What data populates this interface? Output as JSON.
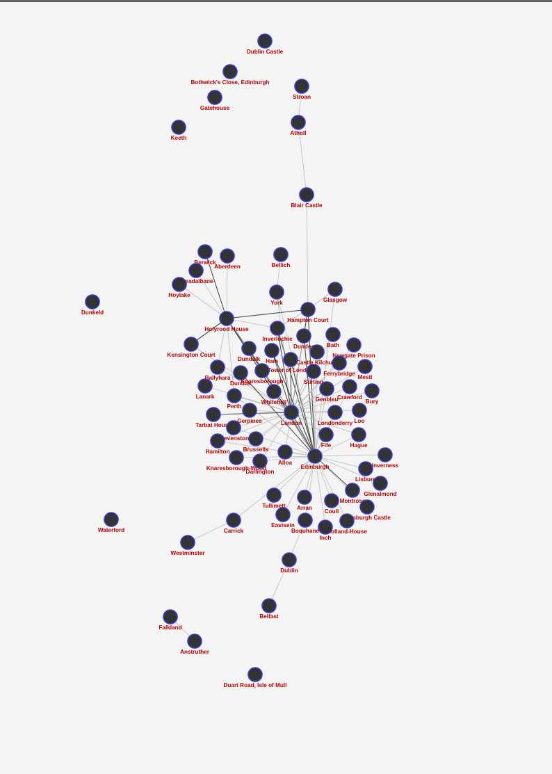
{
  "colors": {
    "background": "#f4f4f4",
    "top_bar": "#5f5f5f",
    "node_fill": "#333333",
    "node_stroke": "#3b3bd6",
    "label": "#b00000",
    "edge_light": "#bbbbbb",
    "edge_dark": "#4a4a4a"
  },
  "graph": {
    "nodes": [
      {
        "id": "Dublin Castle",
        "label": "Dublin Castle"
      },
      {
        "id": "Bothwick's Close, Edinburgh",
        "label": "Bothwick's Close, Edinburgh"
      },
      {
        "id": "Gatehouse",
        "label": "Gatehouse"
      },
      {
        "id": "Keeth",
        "label": "Keeth"
      },
      {
        "id": "Stroan",
        "label": "Stroan"
      },
      {
        "id": "Atholl",
        "label": "Atholl"
      },
      {
        "id": "Blair Castle",
        "label": "Blair Castle"
      },
      {
        "id": "Berwick",
        "label": "Berwick"
      },
      {
        "id": "Aberdeen",
        "label": "Aberdeen"
      },
      {
        "id": "Breadalbane",
        "label": "Breadalbane"
      },
      {
        "id": "Hoylake",
        "label": "Hoylake"
      },
      {
        "id": "Dunkeld",
        "label": "Dunkeld"
      },
      {
        "id": "Bellich",
        "label": "Bellich"
      },
      {
        "id": "York",
        "label": "York"
      },
      {
        "id": "Glasgow",
        "label": "Glasgow"
      },
      {
        "id": "Holyrood House",
        "label": "Holyrood House"
      },
      {
        "id": "Hampton Court",
        "label": "Hampton Court"
      },
      {
        "id": "Inverlochie",
        "label": "Inverlochie"
      },
      {
        "id": "Kensington Court",
        "label": "Kensington Court"
      },
      {
        "id": "Dundee",
        "label": "Dundee"
      },
      {
        "id": "Bath",
        "label": "Bath"
      },
      {
        "id": "Newgate Prison",
        "label": "Newgate Prison"
      },
      {
        "id": "Dundalk",
        "label": "Dundalk"
      },
      {
        "id": "Ham",
        "label": "Ham"
      },
      {
        "id": "Castle Kilchurn",
        "label": "Castle Kilchurn"
      },
      {
        "id": "Tower of London",
        "label": "Tower of London"
      },
      {
        "id": "Ferrybridge",
        "label": "Ferrybridge"
      },
      {
        "id": "Mesti",
        "label": "Mesti"
      },
      {
        "id": "Ballyhara",
        "label": "Ballyhara"
      },
      {
        "id": "Dundas",
        "label": "Dundas"
      },
      {
        "id": "Knaresborough",
        "label": "Knaresborough"
      },
      {
        "id": "Stirling",
        "label": "Stirling"
      },
      {
        "id": "Lanark",
        "label": "Lanark"
      },
      {
        "id": "Genbleu",
        "label": "Genbleu"
      },
      {
        "id": "Crawford",
        "label": "Crawford"
      },
      {
        "id": "Bury",
        "label": "Bury"
      },
      {
        "id": "Whitehall",
        "label": "Whitehall"
      },
      {
        "id": "Perth",
        "label": "Perth"
      },
      {
        "id": "Tarbat House",
        "label": "Tarbat House"
      },
      {
        "id": "Gerpines",
        "label": "Gerpines"
      },
      {
        "id": "London",
        "label": "London"
      },
      {
        "id": "Londonderry",
        "label": "Londonderry"
      },
      {
        "id": "Loo",
        "label": "Loo"
      },
      {
        "id": "Stevenston",
        "label": "Stevenston"
      },
      {
        "id": "Hamilton",
        "label": "Hamilton"
      },
      {
        "id": "Brussells",
        "label": "Brussells"
      },
      {
        "id": "Fife",
        "label": "Fife"
      },
      {
        "id": "Hague",
        "label": "Hague"
      },
      {
        "id": "Knaresborough-Wood",
        "label": "Knaresborough-Wood"
      },
      {
        "id": "Darlington",
        "label": "Darlington"
      },
      {
        "id": "Alloa",
        "label": "Alloa"
      },
      {
        "id": "Edinburgh",
        "label": "Edinburgh"
      },
      {
        "id": "Inverness",
        "label": "Inverness"
      },
      {
        "id": "Lisburn",
        "label": "Lisburn"
      },
      {
        "id": "Glenalmond",
        "label": "Glenalmond"
      },
      {
        "id": "Tullimett",
        "label": "Tullimett"
      },
      {
        "id": "Arran",
        "label": "Arran"
      },
      {
        "id": "Montrose",
        "label": "Montrose"
      },
      {
        "id": "Edinburgh Castle",
        "label": "Edinburgh Castle"
      },
      {
        "id": "Coull",
        "label": "Coull"
      },
      {
        "id": "Eastsein",
        "label": "Eastsein"
      },
      {
        "id": "Boquhane",
        "label": "Boquhane"
      },
      {
        "id": "Holland-House",
        "label": "Holland-House"
      },
      {
        "id": "Inch",
        "label": "Inch"
      },
      {
        "id": "Waterford",
        "label": "Waterford"
      },
      {
        "id": "Carrick",
        "label": "Carrick"
      },
      {
        "id": "Westminster",
        "label": "Westminster"
      },
      {
        "id": "Dublin",
        "label": "Dublin"
      },
      {
        "id": "Belfast",
        "label": "Belfast"
      },
      {
        "id": "Falkland",
        "label": "Falkland"
      },
      {
        "id": "Anstruther",
        "label": "Anstruther"
      },
      {
        "id": "Duart Road, Isle of Mull",
        "label": "Duart Road, Isle of Mull"
      }
    ],
    "edges": [
      {
        "source": "Stroan",
        "target": "Atholl",
        "weight": "light"
      },
      {
        "source": "Atholl",
        "target": "Blair Castle",
        "weight": "light"
      },
      {
        "source": "Blair Castle",
        "target": "Hampton Court",
        "weight": "light"
      },
      {
        "source": "Berwick",
        "target": "Holyrood House",
        "weight": "dark"
      },
      {
        "source": "Aberdeen",
        "target": "Holyrood House",
        "weight": "light"
      },
      {
        "source": "Breadalbane",
        "target": "Holyrood House",
        "weight": "light"
      },
      {
        "source": "Hoylake",
        "target": "Holyrood House",
        "weight": "light"
      },
      {
        "source": "Bellich",
        "target": "York",
        "weight": "light"
      },
      {
        "source": "York",
        "target": "London",
        "weight": "light"
      },
      {
        "source": "York",
        "target": "Edinburgh",
        "weight": "light"
      },
      {
        "source": "Glasgow",
        "target": "Hampton Court",
        "weight": "light"
      },
      {
        "source": "Glasgow",
        "target": "Edinburgh",
        "weight": "light"
      },
      {
        "source": "Holyrood House",
        "target": "Hampton Court",
        "weight": "dark"
      },
      {
        "source": "Holyrood House",
        "target": "Inverlochie",
        "weight": "light"
      },
      {
        "source": "Holyrood House",
        "target": "Kensington Court",
        "weight": "dark"
      },
      {
        "source": "Holyrood House",
        "target": "Edinburgh",
        "weight": "dark"
      },
      {
        "source": "Holyrood House",
        "target": "London",
        "weight": "dark"
      },
      {
        "source": "Holyrood House",
        "target": "Ballyhara",
        "weight": "light"
      },
      {
        "source": "Holyrood House",
        "target": "Dundalk",
        "weight": "light"
      },
      {
        "source": "Holyrood House",
        "target": "Perth",
        "weight": "light"
      },
      {
        "source": "Hampton Court",
        "target": "London",
        "weight": "dark"
      },
      {
        "source": "Hampton Court",
        "target": "Edinburgh",
        "weight": "dark"
      },
      {
        "source": "Hampton Court",
        "target": "Inverlochie",
        "weight": "light"
      },
      {
        "source": "Inverlochie",
        "target": "Edinburgh",
        "weight": "dark"
      },
      {
        "source": "Inverlochie",
        "target": "London",
        "weight": "dark"
      },
      {
        "source": "Kensington Court",
        "target": "London",
        "weight": "light"
      },
      {
        "source": "Dundee",
        "target": "London",
        "weight": "light"
      },
      {
        "source": "Dundee",
        "target": "Edinburgh",
        "weight": "dark"
      },
      {
        "source": "Bath",
        "target": "London",
        "weight": "light"
      },
      {
        "source": "Newgate Prison",
        "target": "London",
        "weight": "light"
      },
      {
        "source": "Dundalk",
        "target": "Edinburgh",
        "weight": "dark"
      },
      {
        "source": "Dundalk",
        "target": "London",
        "weight": "light"
      },
      {
        "source": "Ham",
        "target": "London",
        "weight": "dark"
      },
      {
        "source": "Ham",
        "target": "Edinburgh",
        "weight": "dark"
      },
      {
        "source": "Castle Kilchurn",
        "target": "Edinburgh",
        "weight": "light"
      },
      {
        "source": "Castle Kilchurn",
        "target": "London",
        "weight": "light"
      },
      {
        "source": "Tower of London",
        "target": "London",
        "weight": "dark"
      },
      {
        "source": "Tower of London",
        "target": "Edinburgh",
        "weight": "dark"
      },
      {
        "source": "Ferrybridge",
        "target": "London",
        "weight": "light"
      },
      {
        "source": "Mesti",
        "target": "London",
        "weight": "light"
      },
      {
        "source": "Ballyhara",
        "target": "London",
        "weight": "light"
      },
      {
        "source": "Dundas",
        "target": "Edinburgh",
        "weight": "dark"
      },
      {
        "source": "Knaresborough",
        "target": "London",
        "weight": "light"
      },
      {
        "source": "Stirling",
        "target": "London",
        "weight": "light"
      },
      {
        "source": "Stirling",
        "target": "Edinburgh",
        "weight": "light"
      },
      {
        "source": "Lanark",
        "target": "London",
        "weight": "light"
      },
      {
        "source": "Genbleu",
        "target": "London",
        "weight": "light"
      },
      {
        "source": "Crawford",
        "target": "London",
        "weight": "light"
      },
      {
        "source": "Bury",
        "target": "London",
        "weight": "light"
      },
      {
        "source": "Whitehall",
        "target": "London",
        "weight": "dark"
      },
      {
        "source": "Whitehall",
        "target": "Edinburgh",
        "weight": "light"
      },
      {
        "source": "Perth",
        "target": "London",
        "weight": "light"
      },
      {
        "source": "Tarbat House",
        "target": "London",
        "weight": "dark"
      },
      {
        "source": "Gerpines",
        "target": "London",
        "weight": "light"
      },
      {
        "source": "London",
        "target": "Edinburgh",
        "weight": "dark"
      },
      {
        "source": "London",
        "target": "Londonderry",
        "weight": "light"
      },
      {
        "source": "London",
        "target": "Loo",
        "weight": "light"
      },
      {
        "source": "London",
        "target": "Stevenston",
        "weight": "light"
      },
      {
        "source": "London",
        "target": "Hamilton",
        "weight": "light"
      },
      {
        "source": "London",
        "target": "Brussells",
        "weight": "light"
      },
      {
        "source": "London",
        "target": "Knaresborough-Wood",
        "weight": "light"
      },
      {
        "source": "London",
        "target": "Darlington",
        "weight": "light"
      },
      {
        "source": "London",
        "target": "Alloa",
        "weight": "light"
      },
      {
        "source": "London",
        "target": "Hague",
        "weight": "light"
      },
      {
        "source": "London",
        "target": "Fife",
        "weight": "light"
      },
      {
        "source": "Edinburgh",
        "target": "Londonderry",
        "weight": "light"
      },
      {
        "source": "Edinburgh",
        "target": "Fife",
        "weight": "light"
      },
      {
        "source": "Edinburgh",
        "target": "Hague",
        "weight": "light"
      },
      {
        "source": "Edinburgh",
        "target": "Alloa",
        "weight": "light"
      },
      {
        "source": "Edinburgh",
        "target": "Inverness",
        "weight": "light"
      },
      {
        "source": "Edinburgh",
        "target": "Lisburn",
        "weight": "light"
      },
      {
        "source": "Edinburgh",
        "target": "Glenalmond",
        "weight": "light"
      },
      {
        "source": "Edinburgh",
        "target": "Montrose",
        "weight": "dark"
      },
      {
        "source": "Edinburgh",
        "target": "Edinburgh Castle",
        "weight": "light"
      },
      {
        "source": "Edinburgh",
        "target": "Coull",
        "weight": "light"
      },
      {
        "source": "Edinburgh",
        "target": "Holland-House",
        "weight": "light"
      },
      {
        "source": "Edinburgh",
        "target": "Inch",
        "weight": "light"
      },
      {
        "source": "Edinburgh",
        "target": "Boquhane",
        "weight": "light"
      },
      {
        "source": "Edinburgh",
        "target": "Arran",
        "weight": "light"
      },
      {
        "source": "Edinburgh",
        "target": "Eastsein",
        "weight": "light"
      },
      {
        "source": "Edinburgh",
        "target": "Tullimett",
        "weight": "light"
      },
      {
        "source": "Edinburgh",
        "target": "Carrick",
        "weight": "light"
      },
      {
        "source": "Edinburgh",
        "target": "Stevenston",
        "weight": "light"
      },
      {
        "source": "Edinburgh",
        "target": "Hamilton",
        "weight": "light"
      },
      {
        "source": "Edinburgh",
        "target": "Knaresborough-Wood",
        "weight": "light"
      },
      {
        "source": "Edinburgh",
        "target": "Darlington",
        "weight": "light"
      },
      {
        "source": "Edinburgh",
        "target": "Perth",
        "weight": "light"
      },
      {
        "source": "Edinburgh",
        "target": "Crawford",
        "weight": "light"
      },
      {
        "source": "Edinburgh",
        "target": "Genbleu",
        "weight": "light"
      },
      {
        "source": "Carrick",
        "target": "Westminster",
        "weight": "light"
      },
      {
        "source": "Boquhane",
        "target": "Dublin",
        "weight": "light"
      },
      {
        "source": "Dublin",
        "target": "Belfast",
        "weight": "light"
      },
      {
        "source": "Falkland",
        "target": "Anstruther",
        "weight": "light"
      }
    ]
  }
}
